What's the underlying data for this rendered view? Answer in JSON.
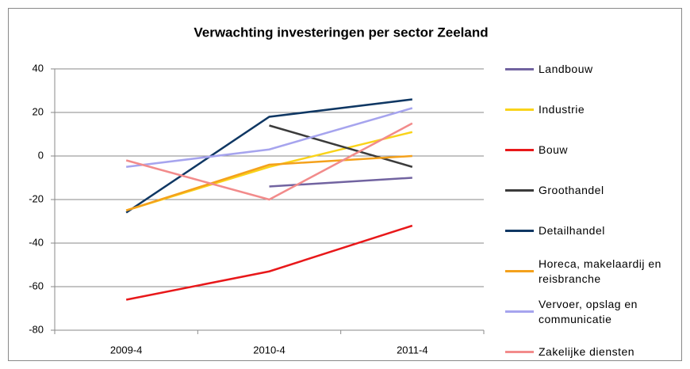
{
  "chart_data": {
    "type": "line",
    "title": "Verwachting investeringen per sector Zeeland",
    "categories": [
      "2009-4",
      "2010-4",
      "2011-4"
    ],
    "series": [
      {
        "name": "Landbouw",
        "color": "#7163a0",
        "values": [
          null,
          -14,
          -10
        ]
      },
      {
        "name": "Industrie",
        "color": "#f9d31a",
        "values": [
          -25,
          -5,
          11
        ]
      },
      {
        "name": "Bouw",
        "color": "#e8181a",
        "values": [
          -66,
          -53,
          -32
        ]
      },
      {
        "name": "Groothandel",
        "color": "#3b3b3b",
        "values": [
          null,
          14,
          -5
        ]
      },
      {
        "name": "Detailhandel",
        "color": "#0f3763",
        "values": [
          -26,
          18,
          26
        ]
      },
      {
        "name": "Horeca, makelaardij en reisbranche",
        "color": "#f4a11c",
        "values": [
          -25,
          -4,
          0
        ]
      },
      {
        "name": "Vervoer, opslag en communicatie",
        "color": "#a6a4ee",
        "values": [
          -5,
          3,
          22
        ]
      },
      {
        "name": "Zakelijke diensten",
        "color": "#f28b8b",
        "values": [
          -2,
          -20,
          15
        ]
      }
    ],
    "ylim": [
      -80,
      40
    ],
    "yticks": [
      -80,
      -60,
      -40,
      -20,
      0,
      20,
      40
    ],
    "grid": true
  }
}
